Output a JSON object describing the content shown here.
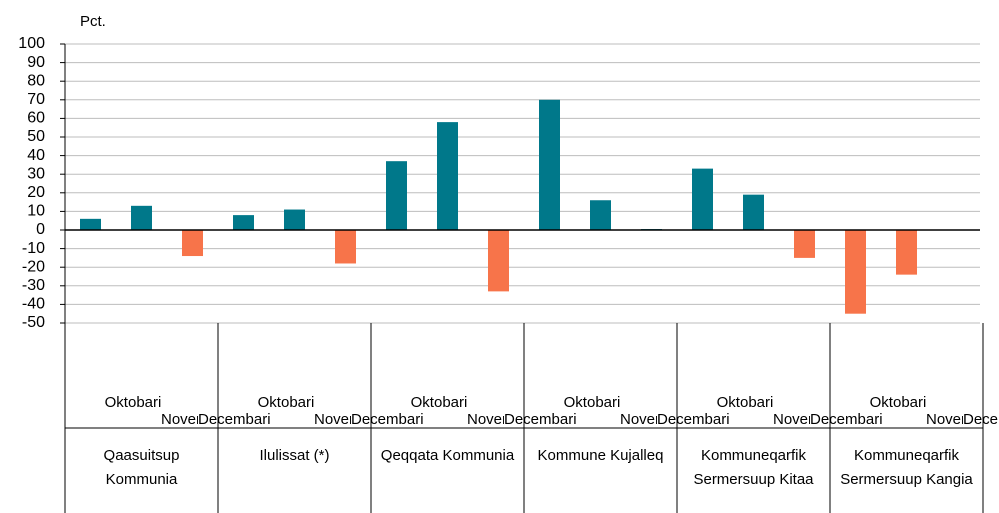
{
  "chart_data": {
    "type": "bar",
    "y_axis_label": "Pct.",
    "categories": [
      "Qaasuitsup Kommunia",
      "Ilulissat (*)",
      "Qeqqata Kommunia",
      "Kommune Kujalleq",
      "Kommuneqarfik Sermersuup Kitaa",
      "Kommuneqarfik Sermersuup Kangia"
    ],
    "series": [
      {
        "name": "Oktobari",
        "values": [
          6,
          8,
          37,
          70,
          33,
          -45
        ]
      },
      {
        "name": "Novembari",
        "values": [
          13,
          11,
          58,
          16,
          19,
          -24
        ]
      },
      {
        "name": "Decembari",
        "values": [
          -14,
          -18,
          -33,
          0.5,
          -15,
          null
        ]
      }
    ],
    "color": "#00788a",
    "negative_color": "#f7744a",
    "ylim": [
      -50,
      100
    ],
    "yticks": [
      -50,
      -40,
      -30,
      -20,
      -10,
      0,
      10,
      20,
      30,
      40,
      50,
      60,
      70,
      80,
      90,
      100
    ],
    "grid": true
  }
}
